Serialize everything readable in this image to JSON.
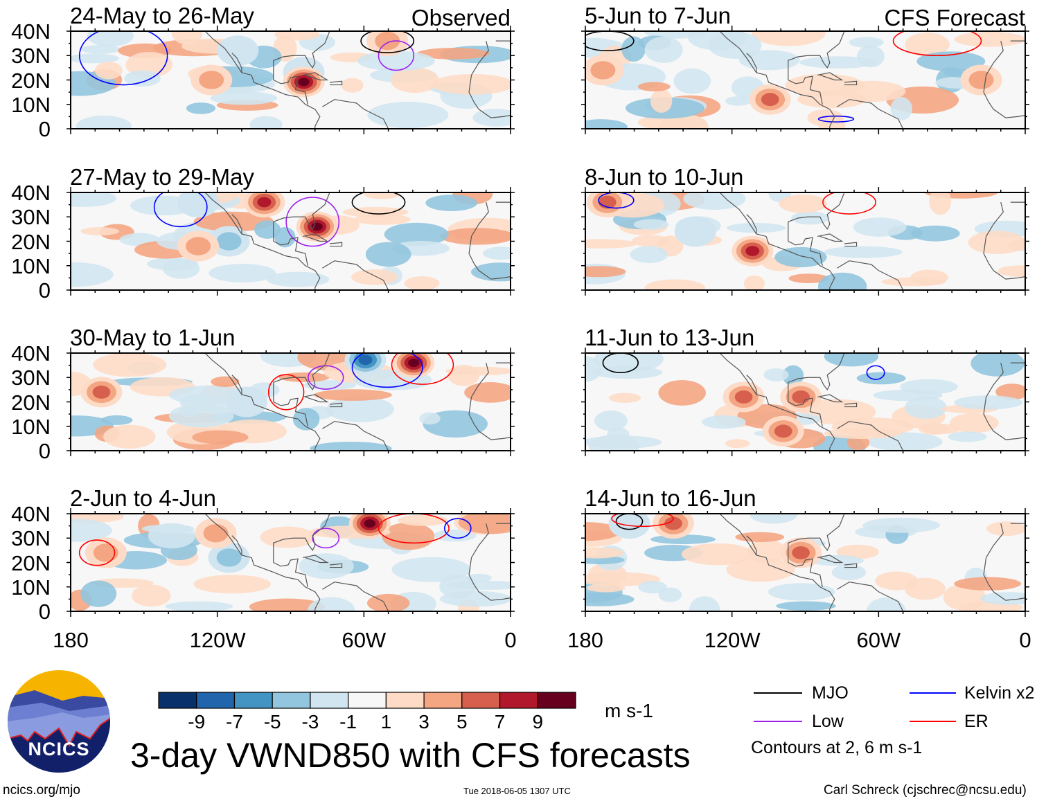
{
  "panels": [
    {
      "title": "24-May to 26-May",
      "tag": "Observed"
    },
    {
      "title": "27-May to 29-May",
      "tag": ""
    },
    {
      "title": "30-May to 1-Jun",
      "tag": ""
    },
    {
      "title": "2-Jun to 4-Jun",
      "tag": ""
    },
    {
      "title": "5-Jun to 7-Jun",
      "tag": "CFS Forecast"
    },
    {
      "title": "8-Jun to 10-Jun",
      "tag": ""
    },
    {
      "title": "11-Jun to 13-Jun",
      "tag": ""
    },
    {
      "title": "14-Jun to 16-Jun",
      "tag": ""
    }
  ],
  "y_ticks": [
    "40N",
    "30N",
    "20N",
    "10N",
    "0"
  ],
  "x_ticks": [
    "180",
    "120W",
    "60W",
    "0"
  ],
  "colorbar": {
    "labels": [
      "-9",
      "-7",
      "-5",
      "-3",
      "-1",
      "1",
      "3",
      "5",
      "7",
      "9"
    ],
    "colors": [
      "#08306b",
      "#2166ac",
      "#4393c3",
      "#92c5de",
      "#d1e5f0",
      "#f7f7f7",
      "#fddbc7",
      "#f4a582",
      "#d6604d",
      "#b2182b",
      "#67001f"
    ],
    "units": "m s-1"
  },
  "legend": {
    "items": [
      {
        "label": "MJO",
        "color": "#000000"
      },
      {
        "label": "Kelvin x2",
        "color": "#0000ff"
      },
      {
        "label": "Low",
        "color": "#a020f0"
      },
      {
        "label": "ER",
        "color": "#ff0000"
      }
    ],
    "note": "Contours at 2, 6 m s-1"
  },
  "main_title": "3-day VWND850 with CFS forecasts",
  "logo": {
    "text": "NCICS"
  },
  "footer": {
    "url": "ncics.org/mjo",
    "timestamp": "Tue 2018-06-05 1307 UTC",
    "credit": "Carl Schreck (cjschrec@ncsu.edu)"
  }
}
